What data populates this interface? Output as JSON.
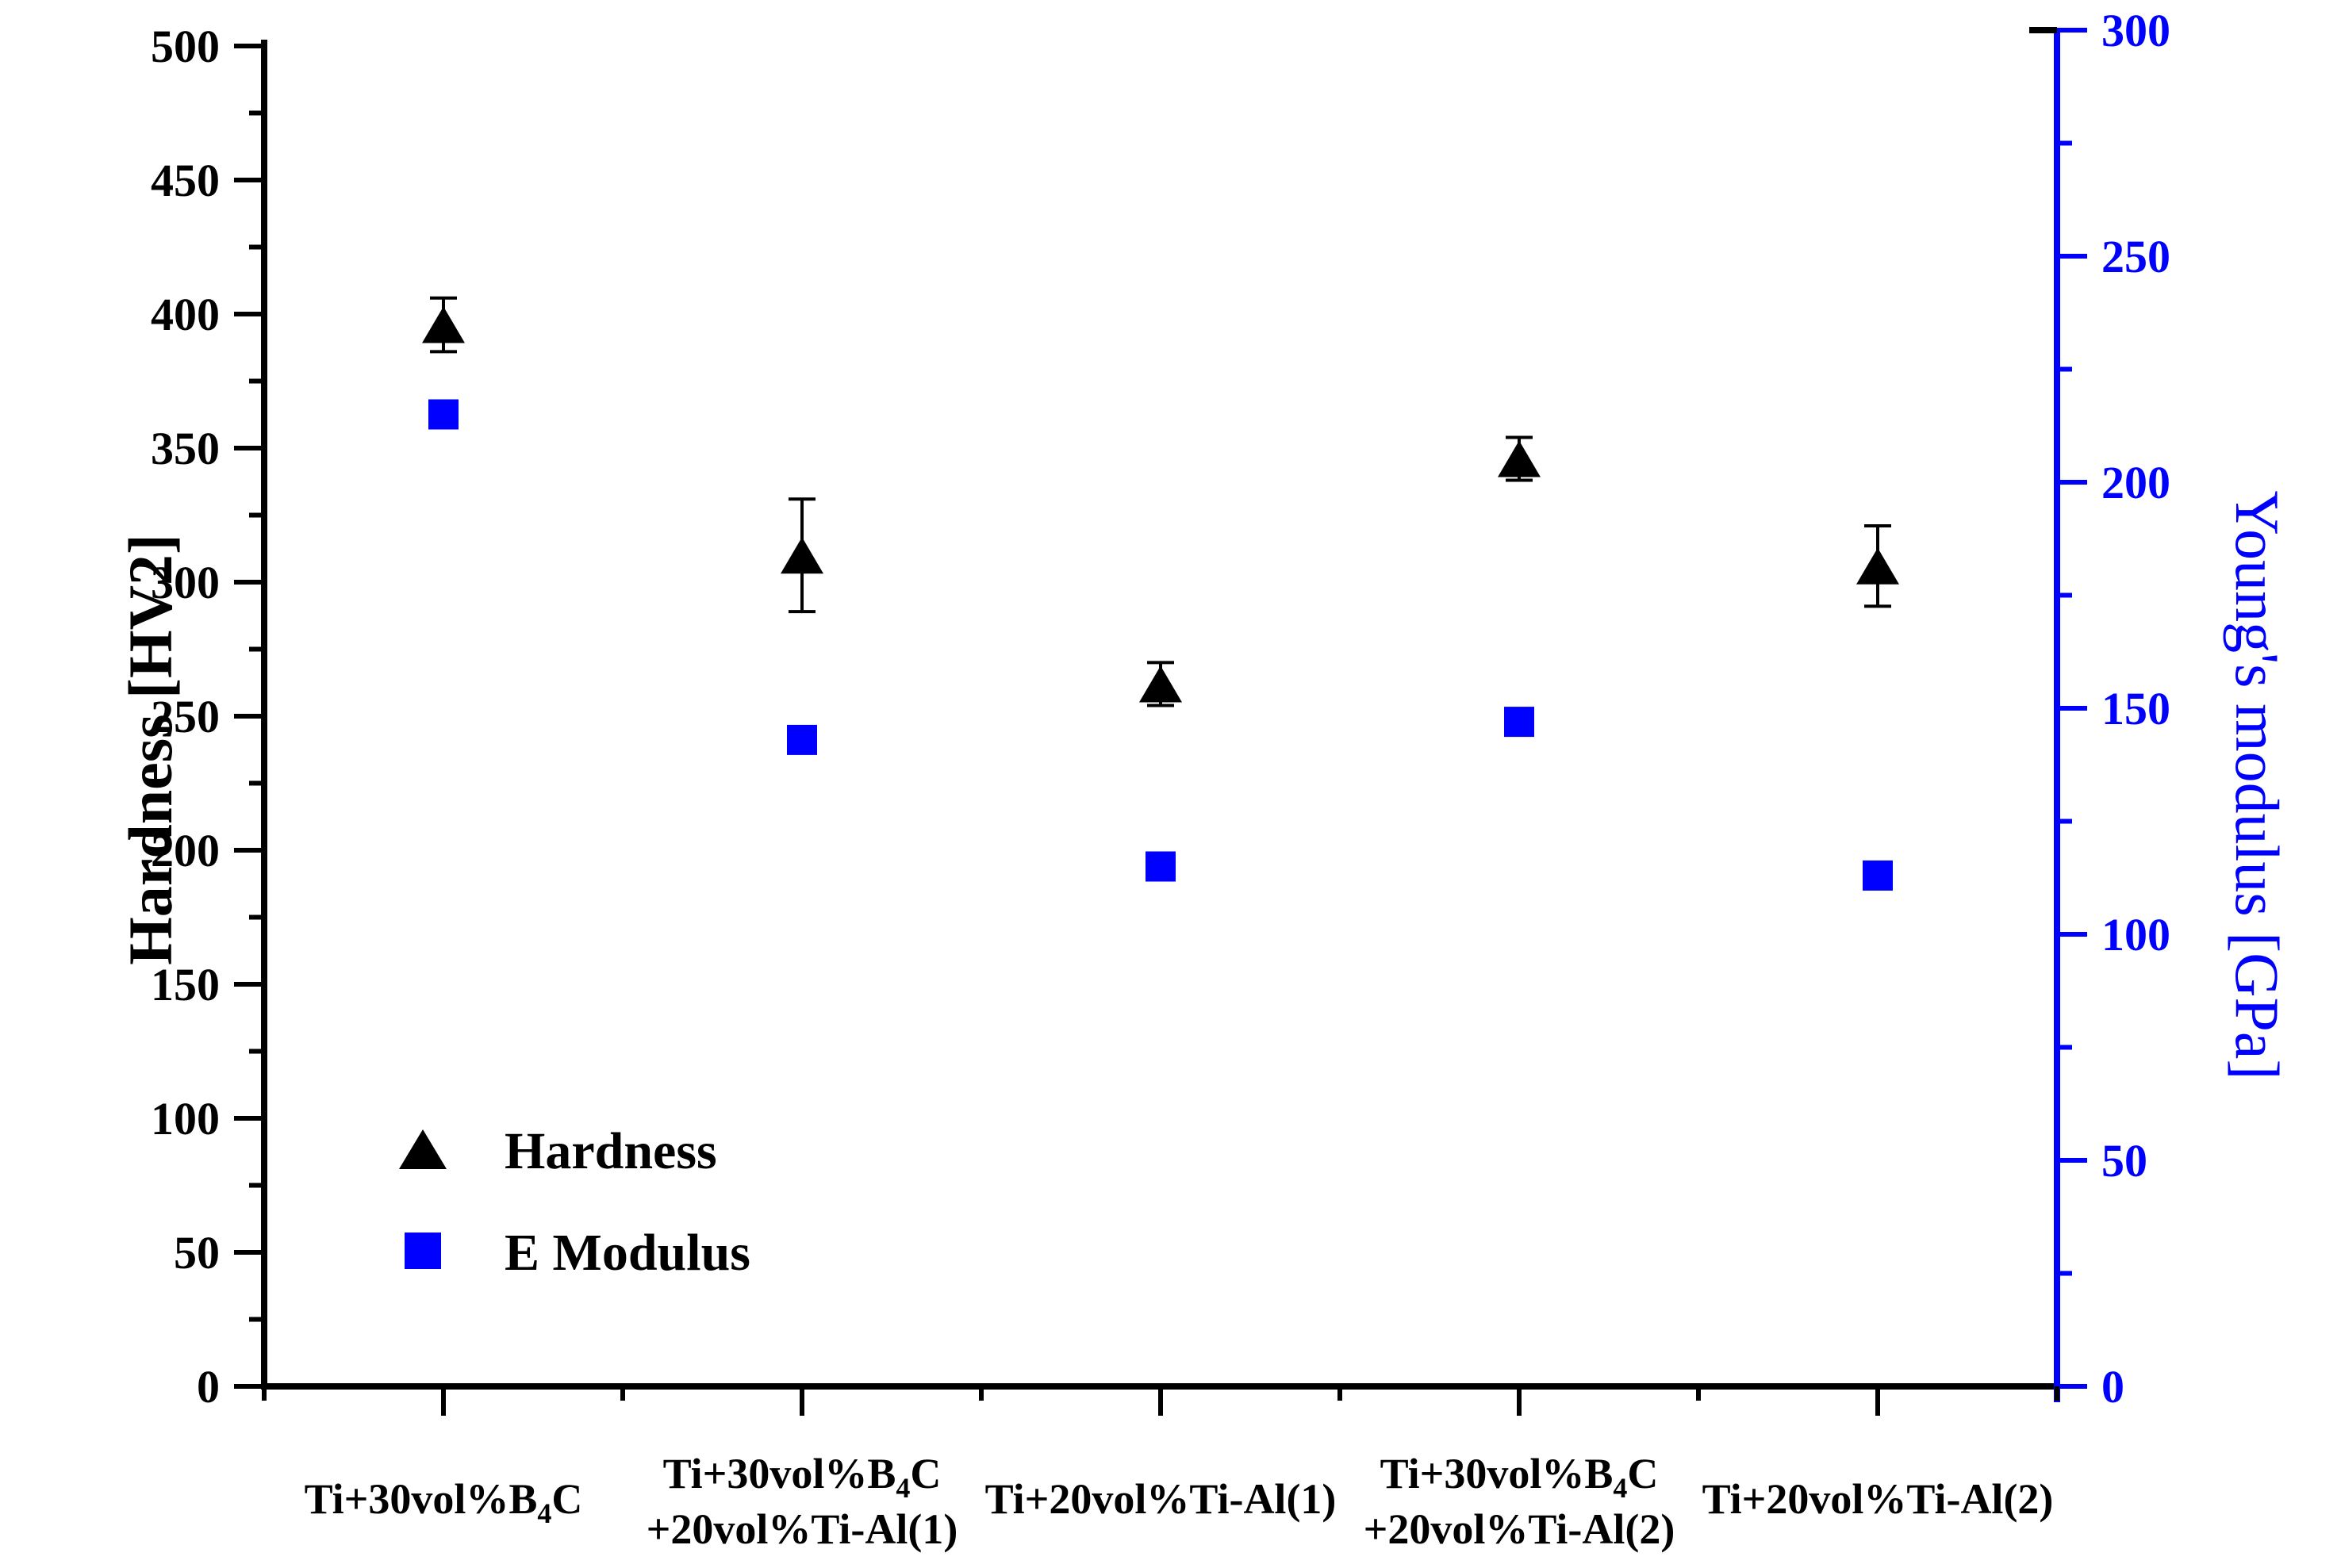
{
  "page": {
    "background": "#ffffff"
  },
  "chart_data": {
    "type": "scatter",
    "categories": [
      {
        "lines": [
          "Ti+30vol%B₄C"
        ]
      },
      {
        "lines": [
          "Ti+30vol%B₄C",
          "+20vol%Ti-Al(1)"
        ]
      },
      {
        "lines": [
          "Ti+20vol%Ti-Al(1)"
        ]
      },
      {
        "lines": [
          "Ti+30vol%B₄C",
          "+20vol%Ti-Al(2)"
        ]
      },
      {
        "lines": [
          "Ti+20vol%Ti-Al(2)"
        ]
      }
    ],
    "series": [
      {
        "name": "Hardness",
        "marker": "triangle",
        "color": "#000000",
        "axis": "left",
        "values": [
          396,
          310,
          262,
          346,
          306
        ],
        "errors": [
          10,
          21,
          8,
          8,
          15
        ]
      },
      {
        "name": "E Modulus",
        "marker": "square",
        "color": "#0000ff",
        "axis": "right",
        "values": [
          215,
          143,
          115,
          147,
          113
        ],
        "errors": [
          0,
          0,
          0,
          0,
          0
        ]
      }
    ],
    "left_axis": {
      "label": "Hardness [HV2]",
      "min": 0,
      "max": 500,
      "major_step": 50,
      "minor_step": 25,
      "color": "#000000",
      "major_tick_labels": [
        "0",
        "50",
        "100",
        "150",
        "200",
        "250",
        "300",
        "350",
        "400",
        "450",
        "500"
      ]
    },
    "right_axis": {
      "label": "Young's modulus [GPa]",
      "min": 0,
      "max": 300,
      "major_step": 50,
      "minor_step": 25,
      "color": "#0000ff",
      "major_tick_labels": [
        "0",
        "50",
        "100",
        "150",
        "200",
        "250",
        "300"
      ]
    },
    "legend": {
      "entries": [
        {
          "label": "Hardness",
          "marker": "triangle",
          "color": "#000000"
        },
        {
          "label": "E Modulus",
          "marker": "square",
          "color": "#0000ff"
        }
      ]
    },
    "grid": false,
    "legend_position": "inside-lower-left"
  }
}
